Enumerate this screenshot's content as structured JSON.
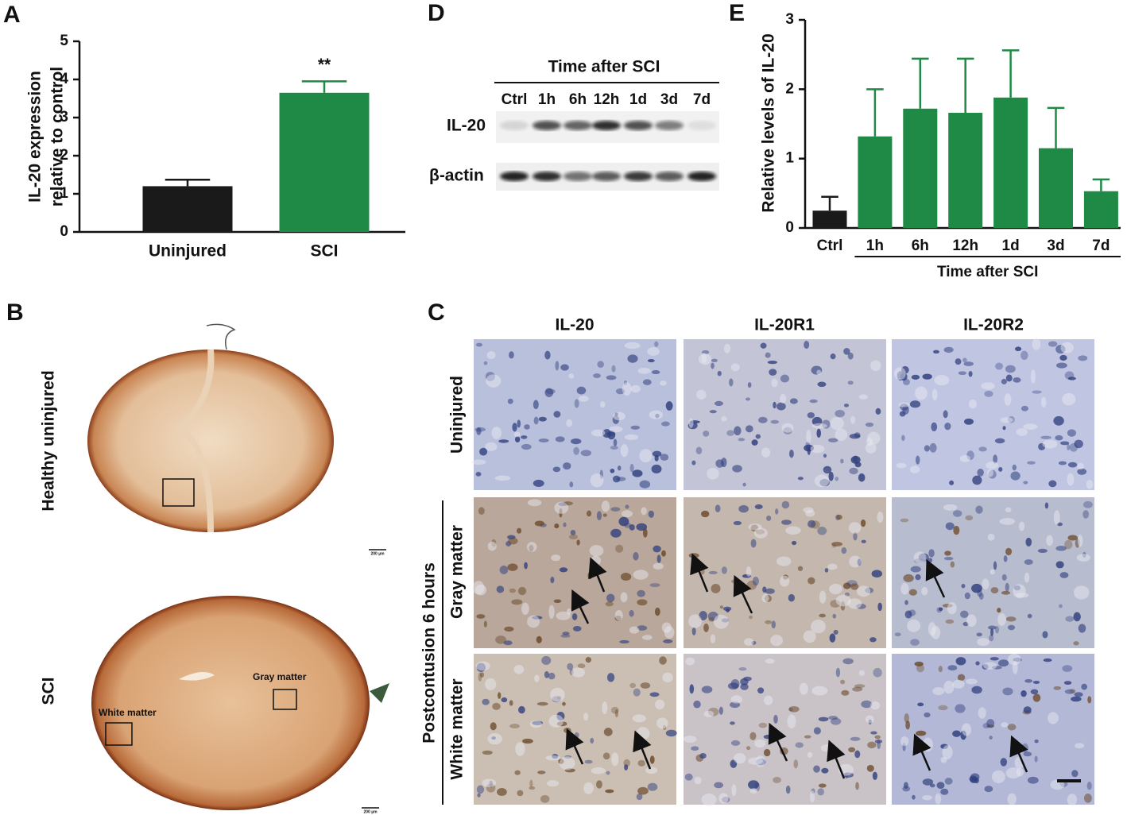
{
  "chart_data": [
    {
      "type": "bar",
      "panel_label": "A",
      "ylabel": [
        "IL-20 expression",
        "relative to control"
      ],
      "categories": [
        "Uninjured",
        "SCI"
      ],
      "values": [
        1.2,
        3.65
      ],
      "errors": [
        0.17,
        0.3
      ],
      "colors": [
        "#1a1a1a",
        "#1e8a45"
      ],
      "annotation": "**",
      "ylim": [
        0,
        5
      ],
      "yticks": [
        0,
        1,
        2,
        3,
        4,
        5
      ]
    },
    {
      "type": "bar",
      "panel_label": "E",
      "ylabel": "Relative levels of IL-20",
      "categories": [
        "Ctrl",
        "1h",
        "6h",
        "12h",
        "1d",
        "3d",
        "7d"
      ],
      "values": [
        0.25,
        1.32,
        1.72,
        1.66,
        1.88,
        1.15,
        0.53
      ],
      "errors": [
        0.2,
        0.68,
        0.72,
        0.78,
        0.68,
        0.58,
        0.17
      ],
      "colors": [
        "#1a1a1a",
        "#1e8a45",
        "#1e8a45",
        "#1e8a45",
        "#1e8a45",
        "#1e8a45",
        "#1e8a45"
      ],
      "group_label": "Time after SCI",
      "ylim": [
        0,
        3
      ],
      "yticks": [
        0,
        1,
        2,
        3
      ]
    }
  ],
  "blot": {
    "panel_label": "D",
    "header": "Time after SCI",
    "lanes": [
      "Ctrl",
      "1h",
      "6h",
      "12h",
      "1d",
      "3d",
      "7d"
    ],
    "rows": [
      "IL-20",
      "β-actin"
    ]
  },
  "histology": {
    "panel_label": "B",
    "rows": [
      "Healthy uninjured",
      "SCI"
    ],
    "regions": [
      "Gray matter",
      "White matter"
    ],
    "scale_bar": "200 µm"
  },
  "ihc": {
    "panel_label": "C",
    "columns": [
      "IL-20",
      "IL-20R1",
      "IL-20R2"
    ],
    "rows": [
      "Uninjured",
      "Gray matter",
      "White matter"
    ],
    "group": "Postcontusion 6 hours"
  }
}
